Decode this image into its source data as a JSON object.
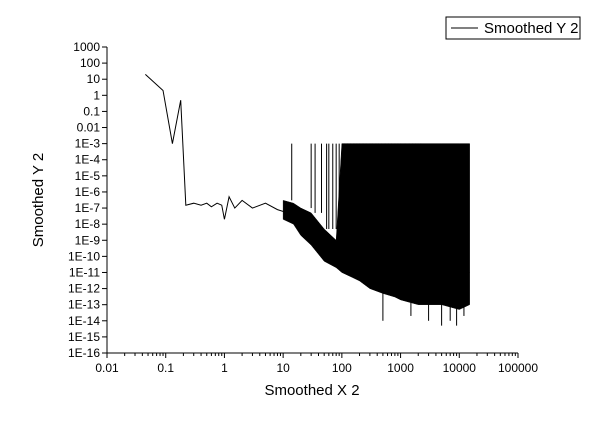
{
  "chart_data": {
    "type": "line",
    "title": "",
    "xlabel": "Smoothed X 2",
    "ylabel": "Smoothed Y 2",
    "x_scale": "log",
    "y_scale": "log",
    "xlim": [
      0.01,
      100000
    ],
    "ylim": [
      1e-16,
      1000
    ],
    "grid": false,
    "legend_position": "top-right",
    "x_ticks": [
      {
        "value": 0.01,
        "label": "0.01"
      },
      {
        "value": 0.1,
        "label": "0.1"
      },
      {
        "value": 1,
        "label": "1"
      },
      {
        "value": 10,
        "label": "10"
      },
      {
        "value": 100,
        "label": "100"
      },
      {
        "value": 1000,
        "label": "1000"
      },
      {
        "value": 10000,
        "label": "10000"
      },
      {
        "value": 100000,
        "label": "100000"
      }
    ],
    "y_ticks": [
      {
        "value": 1000,
        "label": "1000"
      },
      {
        "value": 100,
        "label": "100"
      },
      {
        "value": 10,
        "label": "10"
      },
      {
        "value": 1,
        "label": "1"
      },
      {
        "value": 0.1,
        "label": "0.1"
      },
      {
        "value": 0.01,
        "label": "0.01"
      },
      {
        "value": 0.001,
        "label": "1E-3"
      },
      {
        "value": 0.0001,
        "label": "1E-4"
      },
      {
        "value": 1e-05,
        "label": "1E-5"
      },
      {
        "value": 1e-06,
        "label": "1E-6"
      },
      {
        "value": 1e-07,
        "label": "1E-7"
      },
      {
        "value": 1e-08,
        "label": "1E-8"
      },
      {
        "value": 1e-09,
        "label": "1E-9"
      },
      {
        "value": 1e-10,
        "label": "1E-10"
      },
      {
        "value": 1e-11,
        "label": "1E-11"
      },
      {
        "value": 1e-12,
        "label": "1E-12"
      },
      {
        "value": 1e-13,
        "label": "1E-13"
      },
      {
        "value": 1e-14,
        "label": "1E-14"
      },
      {
        "value": 1e-15,
        "label": "1E-15"
      },
      {
        "value": 1e-16,
        "label": "1E-16"
      }
    ],
    "series": [
      {
        "name": "Smoothed Y 2",
        "color": "#000000",
        "x": [
          0.045,
          0.09,
          0.13,
          0.18,
          0.22,
          0.3,
          0.4,
          0.5,
          0.6,
          0.75,
          0.9,
          1.0,
          1.2,
          1.5,
          2,
          3,
          5,
          8,
          12,
          20,
          30,
          50,
          80,
          100,
          150,
          200,
          300,
          500,
          800,
          1000,
          2000,
          5000,
          10000,
          15000
        ],
        "y": [
          20,
          2,
          0.001,
          0.5,
          1.5e-07,
          2e-07,
          1.5e-07,
          2e-07,
          1.2e-07,
          2e-07,
          1.5e-07,
          2e-08,
          5e-07,
          1e-07,
          3e-07,
          1e-07,
          2e-07,
          8e-08,
          5e-08,
          1e-08,
          2e-09,
          5e-10,
          1e-10,
          1e-10,
          5e-11,
          5e-11,
          3e-11,
          2e-11,
          2e-11,
          1e-11,
          1e-11,
          1e-11,
          1e-11,
          1e-11
        ],
        "band": {
          "x": [
            10,
            15,
            20,
            30,
            50,
            80,
            100,
            150,
            200,
            300,
            500,
            800,
            1000,
            2000,
            5000,
            10000,
            15000
          ],
          "lower": [
            2e-08,
            1e-08,
            2e-09,
            5e-10,
            5e-11,
            2e-11,
            1e-11,
            5e-12,
            3e-12,
            1e-12,
            5e-13,
            3e-13,
            2e-13,
            1e-13,
            1e-13,
            5e-14,
            1e-13
          ],
          "upper": [
            3e-07,
            2e-07,
            1e-07,
            5e-08,
            5e-09,
            1e-09,
            0.001,
            0.001,
            0.001,
            0.001,
            0.001,
            0.001,
            0.001,
            0.001,
            0.001,
            0.001,
            0.001
          ]
        },
        "spikes": {
          "top": 0.001,
          "x": [
            14,
            30,
            35,
            45,
            55,
            60,
            70,
            80,
            90,
            110,
            125,
            140,
            160,
            180,
            200,
            230,
            260,
            300,
            330,
            380,
            420,
            480,
            550,
            620,
            700,
            800,
            900,
            1000,
            1200,
            1400,
            1600,
            1800,
            2000,
            2200
          ]
        },
        "dips": {
          "x": [
            500,
            1500,
            3000,
            5000,
            7000,
            9000,
            12000
          ],
          "y": [
            1e-14,
            2e-14,
            1e-14,
            5e-15,
            1e-14,
            5e-15,
            2e-14
          ]
        }
      }
    ]
  },
  "legend": {
    "entries": [
      "Smoothed Y 2"
    ]
  }
}
